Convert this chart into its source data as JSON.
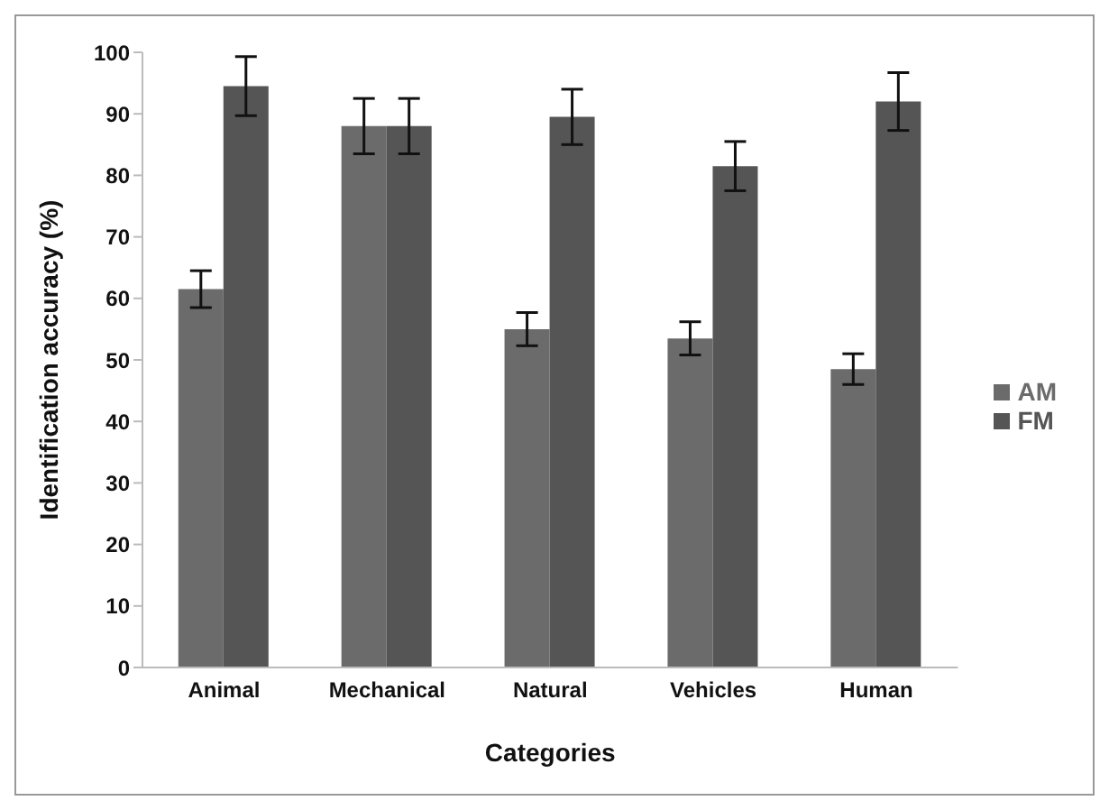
{
  "chart_data": {
    "type": "bar",
    "xlabel": "Categories",
    "ylabel": "Identification accuracy (%)",
    "categories": [
      "Animal",
      "Mechanical",
      "Natural",
      "Vehicles",
      "Human"
    ],
    "series": [
      {
        "name": "AM",
        "color": "#6b6b6b",
        "values": [
          61.5,
          88,
          55,
          53.5,
          48.5
        ],
        "errors": [
          3,
          4.5,
          2.7,
          2.7,
          2.5
        ]
      },
      {
        "name": "FM",
        "color": "#555555",
        "values": [
          94.5,
          88,
          89.5,
          81.5,
          92
        ],
        "errors": [
          4.8,
          4.5,
          4.5,
          4,
          4.7
        ]
      }
    ],
    "ylim": [
      0,
      100
    ],
    "yticks": [
      0,
      10,
      20,
      30,
      40,
      50,
      60,
      70,
      80,
      90,
      100
    ],
    "grid": false,
    "legend": "right"
  }
}
